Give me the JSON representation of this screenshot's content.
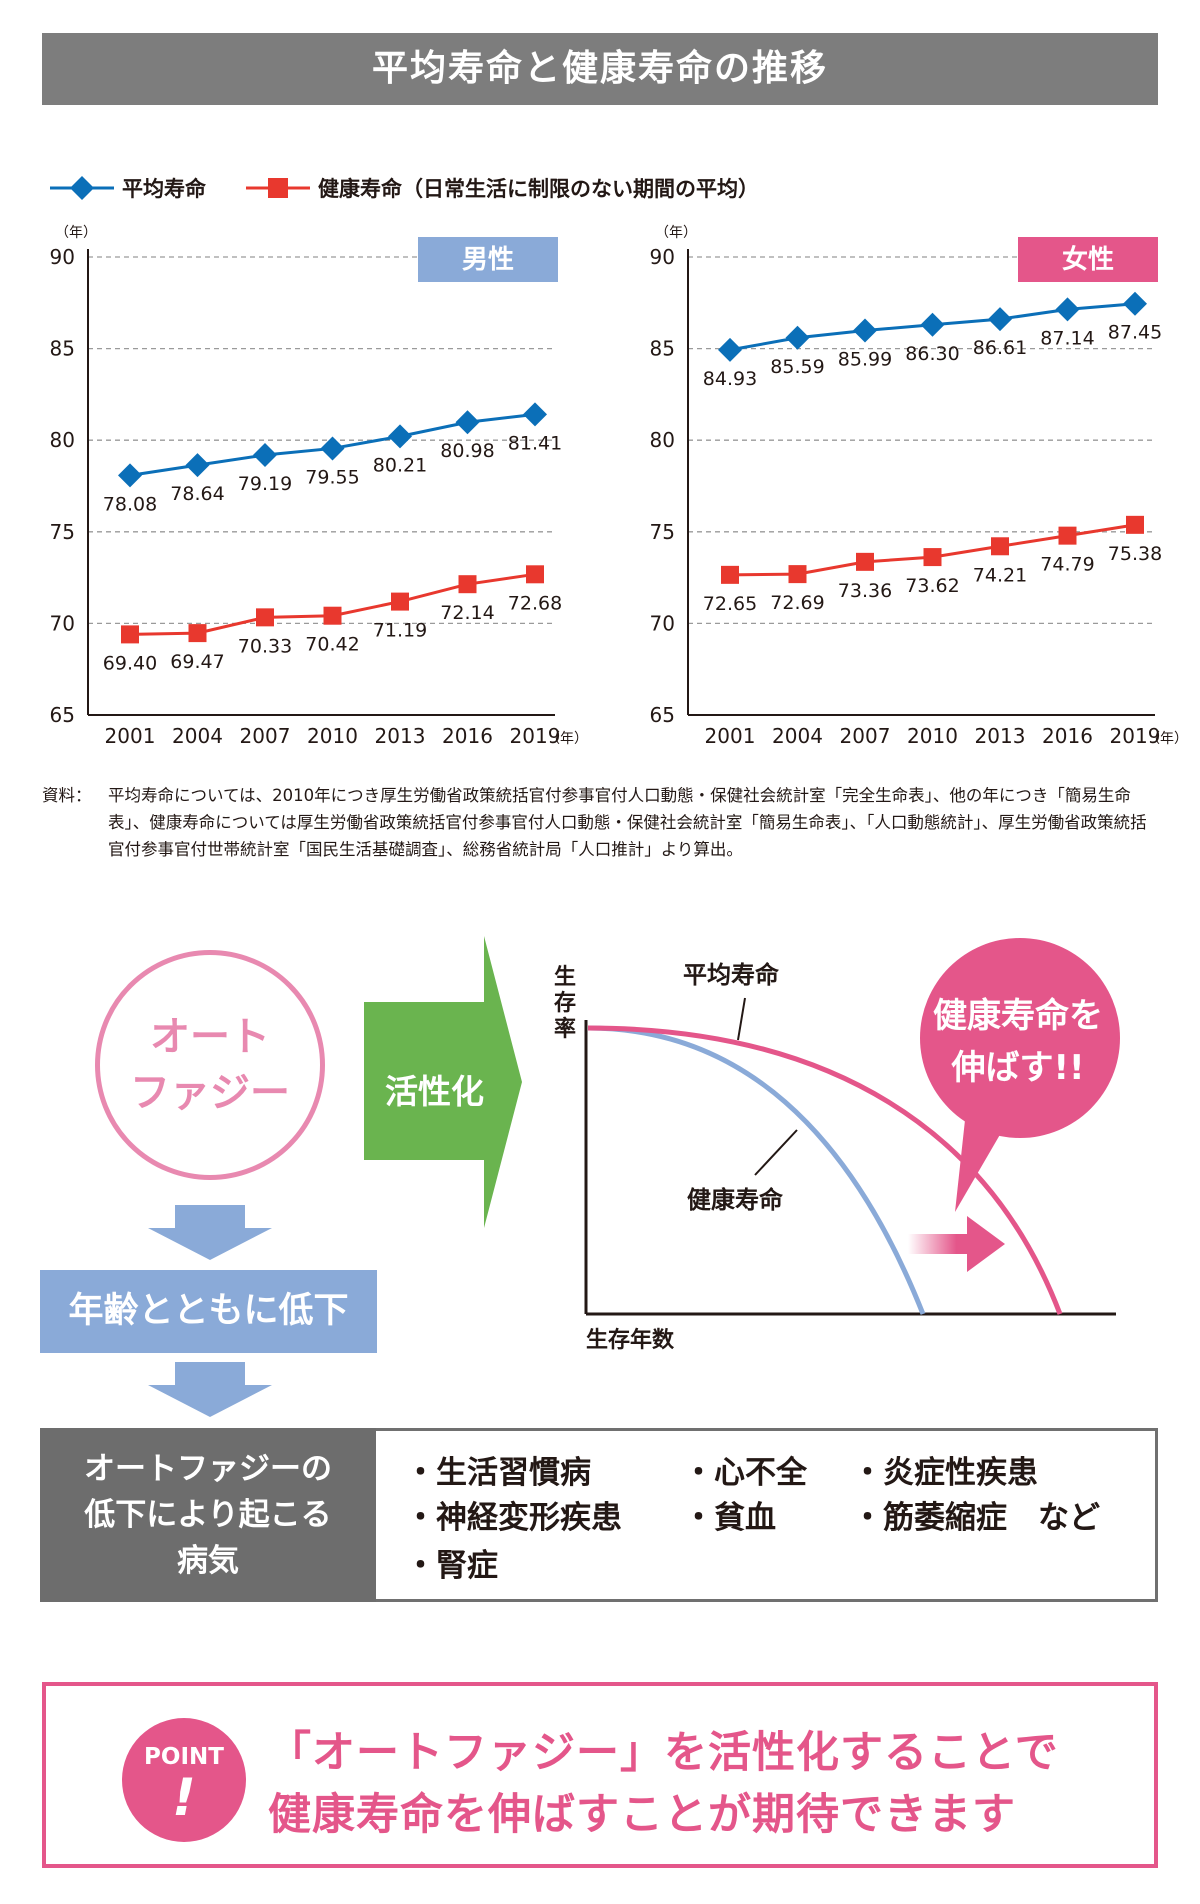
{
  "title": "平均寿命と健康寿命の推移",
  "legend": {
    "avg": "平均寿命",
    "healthy": "健康寿命（日常生活に制限のない期間の平均）"
  },
  "colors": {
    "avg": "#0b6fb8",
    "healthy": "#e8382e",
    "male": "#8aaad8",
    "female": "#e4568a",
    "green": "#6ab44f",
    "gray": "#7d7d7d"
  },
  "chart_data": [
    {
      "type": "line",
      "panel": "男性",
      "ylabel_unit": "（年）",
      "xlabel_unit": "（年）",
      "ylim": [
        65,
        90
      ],
      "yticks": [
        90,
        85,
        80,
        75,
        70,
        65
      ],
      "categories": [
        "2001",
        "2004",
        "2007",
        "2010",
        "2013",
        "2016",
        "2019"
      ],
      "series": [
        {
          "name": "平均寿命",
          "values": [
            78.08,
            78.64,
            79.19,
            79.55,
            80.21,
            80.98,
            81.41
          ],
          "labels": [
            "78.08",
            "78.64",
            "79.19",
            "79.55",
            "80.21",
            "80.98",
            "81.41"
          ]
        },
        {
          "name": "健康寿命",
          "values": [
            69.4,
            69.47,
            70.33,
            70.42,
            71.19,
            72.14,
            72.68
          ],
          "labels": [
            "69.40",
            "69.47",
            "70.33",
            "70.42",
            "71.19",
            "72.14",
            "72.68"
          ]
        }
      ]
    },
    {
      "type": "line",
      "panel": "女性",
      "ylabel_unit": "（年）",
      "xlabel_unit": "（年）",
      "ylim": [
        65,
        90
      ],
      "yticks": [
        90,
        85,
        80,
        75,
        70,
        65
      ],
      "categories": [
        "2001",
        "2004",
        "2007",
        "2010",
        "2013",
        "2016",
        "2019"
      ],
      "series": [
        {
          "name": "平均寿命",
          "values": [
            84.93,
            85.59,
            85.99,
            86.3,
            86.61,
            87.14,
            87.45
          ],
          "labels": [
            "84.93",
            "85.59",
            "85.99",
            "86.30",
            "86.61",
            "87.14",
            "87.45"
          ]
        },
        {
          "name": "健康寿命",
          "values": [
            72.65,
            72.69,
            73.36,
            73.62,
            74.21,
            74.79,
            75.38
          ],
          "labels": [
            "72.65",
            "72.69",
            "73.36",
            "73.62",
            "74.21",
            "74.79",
            "75.38"
          ]
        }
      ]
    }
  ],
  "note": {
    "label": "資料：",
    "text": "平均寿命については、2010年につき厚生労働省政策統括官付参事官付人口動態・保健社会統計室「完全生命表」、他の年につき「簡易生命表」、健康寿命については厚生労働省政策統括官付参事官付人口動態・保健社会統計室「簡易生命表」、「人口動態統計」、厚生労働省政策統括官付参事官付世帯統計室「国民生活基礎調査」、総務省統計局「人口推計」より算出。"
  },
  "diagram": {
    "autophagy": [
      "オート",
      "ファジー"
    ],
    "activation": "活性化",
    "decline": "年齢とともに低下",
    "y_axis": [
      "生",
      "存",
      "率"
    ],
    "x_axis": "生存年数",
    "avg_curve_label": "平均寿命",
    "healthy_curve_label": "健康寿命",
    "bubble": [
      "健康寿命を",
      "伸ばす!!"
    ]
  },
  "diseases": {
    "header": [
      "オートファジーの",
      "低下により起こる",
      "病気"
    ],
    "items": [
      "・生活習慣病",
      "・神経変形疾患",
      "・腎症",
      "・心不全",
      "・貧血",
      "・炎症性疾患",
      "・筋萎縮症　など"
    ]
  },
  "point": {
    "badge": "POINT",
    "mark": "!",
    "lines": [
      "「オートファジー」を活性化することで",
      "健康寿命を伸ばすことが期待できます"
    ]
  }
}
